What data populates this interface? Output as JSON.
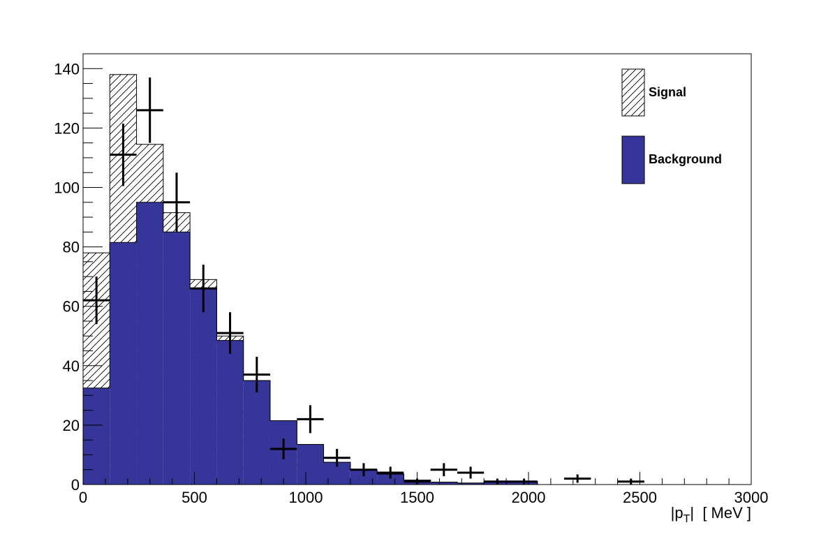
{
  "chart_data": {
    "type": "bar",
    "title": "",
    "xlabel": "|p_T|  [ MeV ]",
    "ylabel": "",
    "xlim": [
      0,
      3000
    ],
    "ylim": [
      0,
      145
    ],
    "bin_width": 120,
    "x_ticks": [
      0,
      500,
      1000,
      1500,
      2000,
      2500,
      3000
    ],
    "y_ticks": [
      0,
      20,
      40,
      60,
      80,
      100,
      120,
      140
    ],
    "grid": false,
    "legend_position": "top-right",
    "colors": {
      "background": "#35359a",
      "signal_hatch": "#000000",
      "data": "#000000"
    },
    "series": [
      {
        "name": "Signal",
        "style": "hatched",
        "bins": [
          {
            "x0": 0,
            "x1": 120,
            "y": 78
          },
          {
            "x0": 120,
            "x1": 240,
            "y": 138
          },
          {
            "x0": 240,
            "x1": 360,
            "y": 114.5
          },
          {
            "x0": 360,
            "x1": 480,
            "y": 91.5
          },
          {
            "x0": 480,
            "x1": 600,
            "y": 69
          },
          {
            "x0": 600,
            "x1": 720,
            "y": 50
          },
          {
            "x0": 720,
            "x1": 840,
            "y": 35
          },
          {
            "x0": 840,
            "x1": 960,
            "y": 21.5
          },
          {
            "x0": 960,
            "x1": 1080,
            "y": 13.5
          },
          {
            "x0": 1080,
            "x1": 1200,
            "y": 7.5
          },
          {
            "x0": 1200,
            "x1": 1320,
            "y": 5
          },
          {
            "x0": 1320,
            "x1": 1440,
            "y": 3.5
          },
          {
            "x0": 1440,
            "x1": 1560,
            "y": 1.5
          },
          {
            "x0": 1560,
            "x1": 1680,
            "y": 0.8
          },
          {
            "x0": 1680,
            "x1": 1800,
            "y": 0.5
          },
          {
            "x0": 1800,
            "x1": 1920,
            "y": 0.8
          },
          {
            "x0": 1920,
            "x1": 2040,
            "y": 1
          }
        ]
      },
      {
        "name": "Background",
        "style": "filled",
        "bins": [
          {
            "x0": 0,
            "x1": 120,
            "y": 32.5
          },
          {
            "x0": 120,
            "x1": 240,
            "y": 81.5
          },
          {
            "x0": 240,
            "x1": 360,
            "y": 95
          },
          {
            "x0": 360,
            "x1": 480,
            "y": 85
          },
          {
            "x0": 480,
            "x1": 600,
            "y": 66
          },
          {
            "x0": 600,
            "x1": 720,
            "y": 48.5
          },
          {
            "x0": 720,
            "x1": 840,
            "y": 35
          },
          {
            "x0": 840,
            "x1": 960,
            "y": 21.5
          },
          {
            "x0": 960,
            "x1": 1080,
            "y": 13.5
          },
          {
            "x0": 1080,
            "x1": 1200,
            "y": 7.5
          },
          {
            "x0": 1200,
            "x1": 1320,
            "y": 5
          },
          {
            "x0": 1320,
            "x1": 1440,
            "y": 3.5
          },
          {
            "x0": 1440,
            "x1": 1560,
            "y": 1.5
          },
          {
            "x0": 1560,
            "x1": 1680,
            "y": 0.8
          },
          {
            "x0": 1680,
            "x1": 1800,
            "y": 0.5
          },
          {
            "x0": 1800,
            "x1": 1920,
            "y": 0.8
          },
          {
            "x0": 1920,
            "x1": 2040,
            "y": 1
          }
        ]
      }
    ],
    "data_points": [
      {
        "x": 60,
        "y": 62,
        "err": 8
      },
      {
        "x": 180,
        "y": 111,
        "err": 10.5
      },
      {
        "x": 300,
        "y": 126,
        "err": 11
      },
      {
        "x": 420,
        "y": 95,
        "err": 10
      },
      {
        "x": 540,
        "y": 66,
        "err": 8
      },
      {
        "x": 660,
        "y": 51,
        "err": 7
      },
      {
        "x": 780,
        "y": 37,
        "err": 6
      },
      {
        "x": 900,
        "y": 12,
        "err": 3.5
      },
      {
        "x": 1020,
        "y": 22,
        "err": 4.7
      },
      {
        "x": 1140,
        "y": 9,
        "err": 3
      },
      {
        "x": 1260,
        "y": 5,
        "err": 2.2
      },
      {
        "x": 1380,
        "y": 4,
        "err": 2
      },
      {
        "x": 1500,
        "y": 1,
        "err": 1
      },
      {
        "x": 1620,
        "y": 5,
        "err": 2.2
      },
      {
        "x": 1740,
        "y": 4,
        "err": 2
      },
      {
        "x": 1860,
        "y": 1,
        "err": 1
      },
      {
        "x": 1980,
        "y": 1,
        "err": 1
      },
      {
        "x": 2220,
        "y": 2,
        "err": 1.4
      },
      {
        "x": 2460,
        "y": 1,
        "err": 1
      }
    ]
  }
}
